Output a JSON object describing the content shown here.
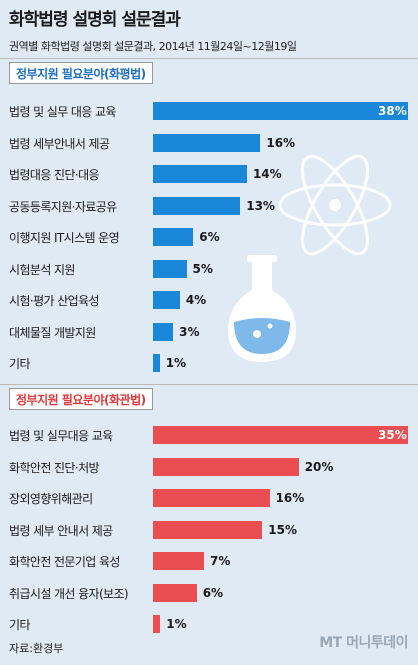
{
  "title": "화학법령 설명회 설문결과",
  "subtitle": "권역별 화학법령 설명회 설문결과, 2014년 11월24일~12월19일",
  "source": "자료:환경부",
  "logo": "MT 머니투데이",
  "colors": {
    "blue": "#1a87d9",
    "red": "#ea4e52"
  },
  "chart_data": [
    {
      "type": "bar",
      "title": "정부지원 필요분야(화평법)",
      "categories": [
        "법령 및 실무 대응 교육",
        "법령 세부안내서 제공",
        "법령대응 진단·대응",
        "공동등록지원·자료공유",
        "이행지원 IT시스템 운영",
        "시험분석 지원",
        "시험·평가 산업육성",
        "대체물질 개발지원",
        "기타"
      ],
      "values": [
        38,
        16,
        14,
        13,
        6,
        5,
        4,
        3,
        1
      ],
      "value_labels": [
        "38%",
        "16%",
        "14%",
        "13%",
        "6%",
        "5%",
        "4%",
        "3%",
        "1%"
      ],
      "unit": "%"
    },
    {
      "type": "bar",
      "title": "정부지원 필요분야(화관법)",
      "categories": [
        "법령 및 실무대응 교육",
        "화학안전 진단·처방",
        "장외영향위해관리",
        "법령 세부 안내서 제공",
        "화학안전 전문기업 육성",
        "취급시설 개선 융자(보조)",
        "기타"
      ],
      "values": [
        35,
        20,
        16,
        15,
        7,
        6,
        1
      ],
      "value_labels": [
        "35%",
        "20%",
        "16%",
        "15%",
        "7%",
        "6%",
        "1%"
      ],
      "unit": "%"
    }
  ]
}
